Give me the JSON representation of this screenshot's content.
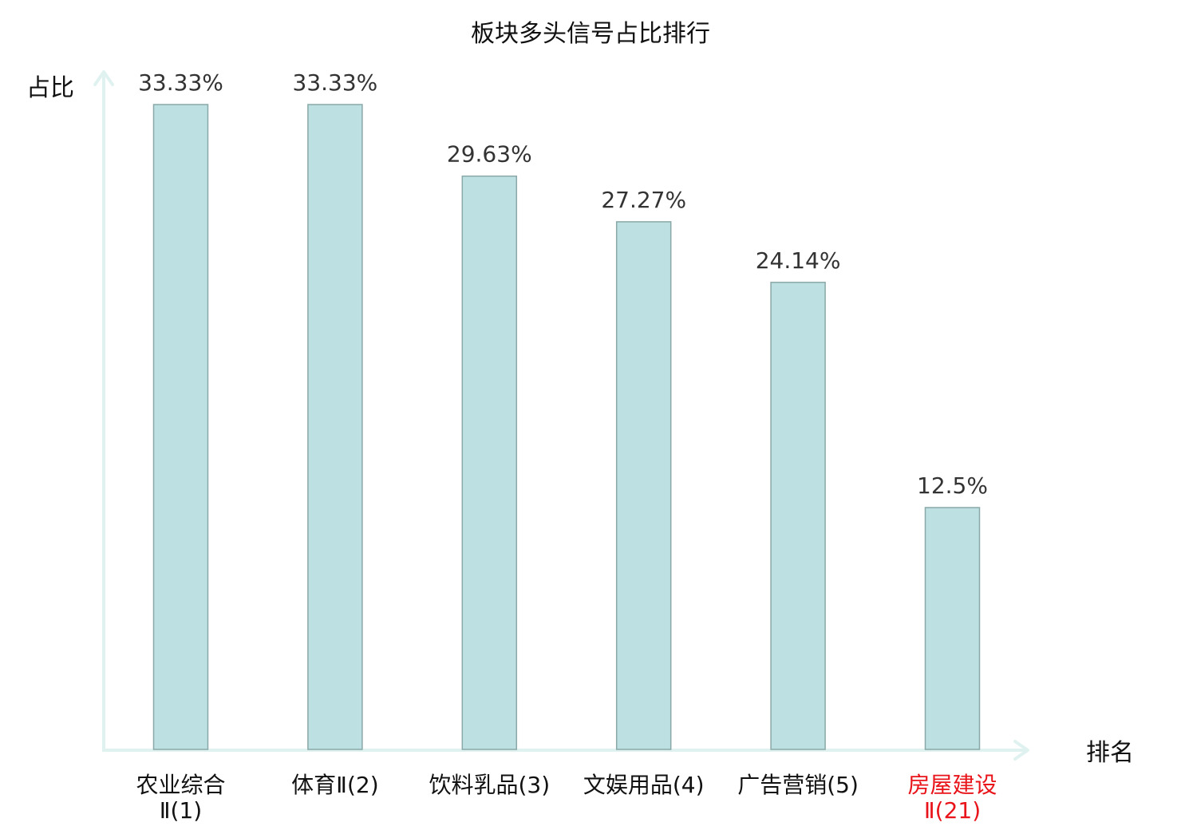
{
  "chart_data": {
    "type": "bar",
    "title": "板块多头信号占比排行",
    "xlabel": "排名",
    "ylabel": "占比",
    "categories": [
      [
        "农业综合",
        "Ⅱ(1)"
      ],
      [
        "体育Ⅱ(2)"
      ],
      [
        "饮料乳品(3)"
      ],
      [
        "文娱用品(4)"
      ],
      [
        "广告营销(5)"
      ],
      [
        "房屋建设",
        "Ⅱ(21)"
      ]
    ],
    "values": [
      33.33,
      33.33,
      29.63,
      27.27,
      24.14,
      12.5
    ],
    "value_labels": [
      "33.33%",
      "33.33%",
      "29.63%",
      "27.27%",
      "24.14%",
      "12.5%"
    ],
    "ylim": [
      0,
      33.33
    ],
    "grid": false,
    "colors": {
      "bar_fill": "#bde0e3",
      "bar_stroke": "#8aa8a8",
      "axis": "#e0f2ef",
      "label": "#111111",
      "value_label": "#333333",
      "highlight": "#e8141a",
      "highlight_index": 5
    }
  }
}
